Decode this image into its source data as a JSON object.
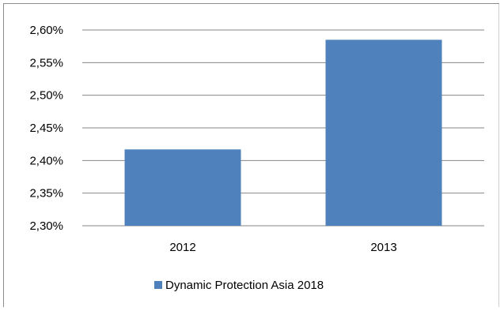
{
  "chart_data": {
    "type": "bar",
    "categories": [
      "2012",
      "2013"
    ],
    "series": [
      {
        "name": "Dynamic Protection Asia 2018",
        "values": [
          2.417,
          2.585
        ],
        "color": "#4f81bd"
      }
    ],
    "y_ticks": [
      "2,30%",
      "2,35%",
      "2,40%",
      "2,45%",
      "2,50%",
      "2,55%",
      "2,60%"
    ],
    "ylim": [
      2.3,
      2.6
    ],
    "y_unit": "%",
    "grid": true,
    "legend_position": "bottom"
  }
}
